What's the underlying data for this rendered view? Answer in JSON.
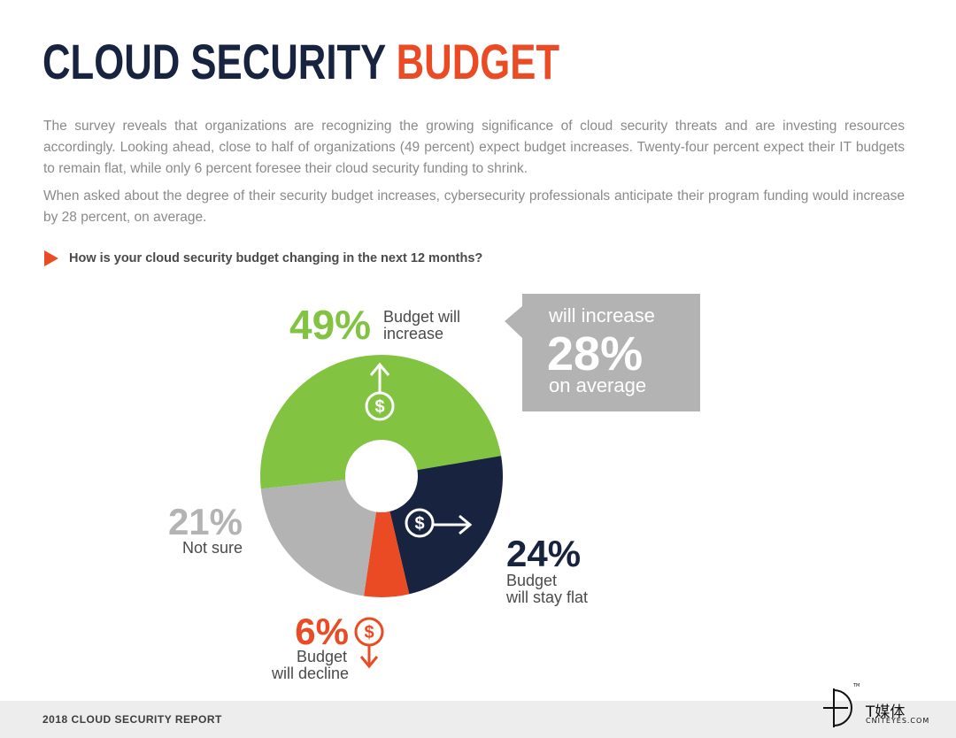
{
  "title": {
    "part1": "CLOUD SECURITY",
    "part2": "BUDGET"
  },
  "paragraphs": [
    "The survey reveals that organizations are recognizing the growing significance of cloud security threats and are investing resources accordingly. Looking ahead, close to half of organizations (49 percent) expect budget increases. Twenty-four percent expect their IT budgets to remain flat, while only 6 percent foresee their cloud security funding to shrink.",
    "When asked about the degree of their security budget increases, cybersecurity professionals anticipate their program funding would increase by 28 percent, on average."
  ],
  "question": "How is your cloud security budget changing in the next 12 months?",
  "colors": {
    "green": "#82c341",
    "navy": "#17233f",
    "orange": "#ea4b24",
    "gray": "#b3b3b3",
    "title_navy": "#17233f",
    "title_orange": "#ea4b24"
  },
  "chart_data": {
    "type": "pie",
    "donut": true,
    "slices": [
      {
        "pct": "49%",
        "value": 49,
        "label_lines": [
          "Budget will",
          "increase"
        ],
        "color": "#82c341",
        "icon": "dollar-up-arrow-icon"
      },
      {
        "pct": "24%",
        "value": 24,
        "label_lines": [
          "Budget",
          "will stay flat"
        ],
        "color": "#17233f",
        "icon": "dollar-right-arrow-icon"
      },
      {
        "pct": "6%",
        "value": 6,
        "label_lines": [
          "Budget",
          "will decline"
        ],
        "color": "#ea4b24",
        "icon": "dollar-down-arrow-icon"
      },
      {
        "pct": "21%",
        "value": 21,
        "label_lines": [
          "Not sure"
        ],
        "color": "#b3b3b3",
        "icon": ""
      }
    ],
    "callout": {
      "line1": "will increase",
      "value": "28%",
      "line2": "on average"
    }
  },
  "footer": {
    "text": "2018 CLOUD SECURITY REPORT"
  },
  "watermark": {
    "brand": "T媒体",
    "sub": "CNITEYES.COM",
    "tm": "TM"
  }
}
